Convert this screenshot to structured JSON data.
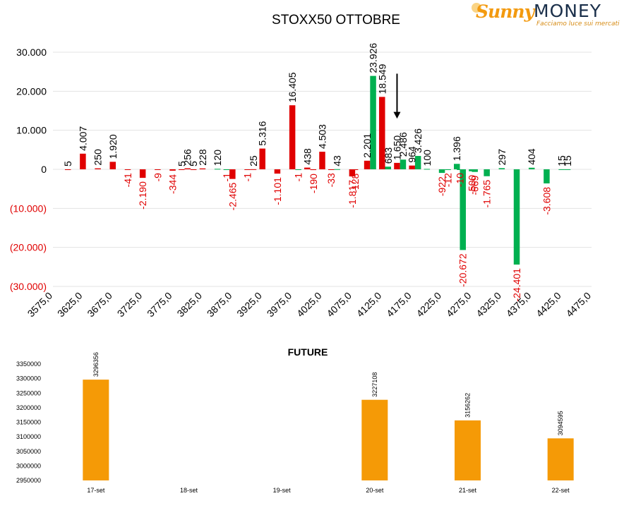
{
  "logo": {
    "brand_part1": "Sunny",
    "brand_part2": "MONEY",
    "tagline": "Facciamo luce sui mercati"
  },
  "colors": {
    "positive": "#00b050",
    "negative": "#e00000",
    "future_bar": "#f59a06",
    "arrow": "#000000"
  },
  "chart_data": [
    {
      "type": "bar",
      "title": "STOXX50 OTTOBRE",
      "xlabel": "",
      "ylabel": "",
      "xlim": [
        3575,
        4475
      ],
      "ylim": [
        -30000,
        30000
      ],
      "x_ticks": [
        "3575,0",
        "3625,0",
        "3675,0",
        "3725,0",
        "3775,0",
        "3825,0",
        "3875,0",
        "3925,0",
        "3975,0",
        "4025,0",
        "4075,0",
        "4125,0",
        "4175,0",
        "4225,0",
        "4275,0",
        "4325,0",
        "4375,0",
        "4425,0",
        "4475,0"
      ],
      "y_ticks": [
        "30.000",
        "20.000",
        "10.000",
        "0",
        "(10.000)",
        "(20.000)",
        "(30.000)"
      ],
      "grid": true,
      "arrow_at_strike": 4150,
      "series": [
        {
          "color_key": "negative",
          "points": [
            {
              "x": 3600,
              "y": 5,
              "label": "5"
            },
            {
              "x": 3625,
              "y": 4007,
              "label": "4.007"
            },
            {
              "x": 3650,
              "y": 250,
              "label": "250"
            },
            {
              "x": 3675,
              "y": 1920,
              "label": "1.920"
            },
            {
              "x": 3700,
              "y": -41,
              "label": "-41"
            },
            {
              "x": 3725,
              "y": -2190,
              "label": "-2.190"
            },
            {
              "x": 3750,
              "y": -9,
              "label": "-9"
            },
            {
              "x": 3775,
              "y": -344,
              "label": "-344"
            },
            {
              "x": 3790,
              "y": 5,
              "label": "5"
            },
            {
              "x": 3800,
              "y": 256,
              "label": "256"
            },
            {
              "x": 3810,
              "y": 5,
              "label": "5"
            },
            {
              "x": 3825,
              "y": 228,
              "label": "228"
            },
            {
              "x": 3875,
              "y": -2465,
              "label": "-2.465"
            },
            {
              "x": 3900,
              "y": -1,
              "label": "-1"
            },
            {
              "x": 3910,
              "y": 25,
              "label": "25"
            },
            {
              "x": 3925,
              "y": 5316,
              "label": "5.316"
            },
            {
              "x": 3950,
              "y": -1101,
              "label": "-1.101"
            },
            {
              "x": 3975,
              "y": 16405,
              "label": "16.405"
            },
            {
              "x": 4000,
              "y": 438,
              "label": "438"
            },
            {
              "x": 4010,
              "y": -190,
              "label": "-190"
            },
            {
              "x": 4025,
              "y": 4503,
              "label": "4.503"
            },
            {
              "x": 4040,
              "y": -33,
              "label": "-33"
            },
            {
              "x": 4075,
              "y": -1817,
              "label": "-1.817"
            },
            {
              "x": 4080,
              "y": -128,
              "label": "-128"
            },
            {
              "x": 4100,
              "y": 2201,
              "label": "2.201"
            },
            {
              "x": 4125,
              "y": 18549,
              "label": "18.549"
            },
            {
              "x": 4150,
              "y": 1650,
              "label": "1.650"
            },
            {
              "x": 4175,
              "y": 964,
              "label": "964"
            }
          ]
        },
        {
          "color_key": "positive",
          "points": [
            {
              "x": 3850,
              "y": 120,
              "label": "120"
            },
            {
              "x": 3865,
              "y": -1,
              "label": "-1"
            },
            {
              "x": 3985,
              "y": -1,
              "label": "-1"
            },
            {
              "x": 4050,
              "y": 43,
              "label": "43"
            },
            {
              "x": 4110,
              "y": 23926,
              "label": "23.926"
            },
            {
              "x": 4135,
              "y": 683,
              "label": "683"
            },
            {
              "x": 4160,
              "y": 2486,
              "label": "2.486"
            },
            {
              "x": 4185,
              "y": 3426,
              "label": "3.426"
            },
            {
              "x": 4200,
              "y": 100,
              "label": "100"
            },
            {
              "x": 4225,
              "y": -922,
              "label": "-922"
            },
            {
              "x": 4235,
              "y": -12,
              "label": "-12"
            },
            {
              "x": 4250,
              "y": 1396,
              "label": "1.396"
            },
            {
              "x": 4255,
              "y": -10,
              "label": "-10"
            },
            {
              "x": 4260,
              "y": -20672,
              "label": "-20.672"
            },
            {
              "x": 4275,
              "y": -500,
              "label": "-500"
            },
            {
              "x": 4280,
              "y": -669,
              "label": "-669"
            },
            {
              "x": 4300,
              "y": -1765,
              "label": "-1.765"
            },
            {
              "x": 4325,
              "y": 297,
              "label": "297"
            },
            {
              "x": 4350,
              "y": -24401,
              "label": "-24.401"
            },
            {
              "x": 4375,
              "y": 404,
              "label": "404"
            },
            {
              "x": 4400,
              "y": -3608,
              "label": "-3.608"
            },
            {
              "x": 4425,
              "y": 15,
              "label": "15"
            },
            {
              "x": 4435,
              "y": 15,
              "label": "15"
            }
          ]
        }
      ]
    },
    {
      "type": "bar",
      "title": "FUTURE",
      "xlabel": "",
      "ylabel": "",
      "categories": [
        "17-set",
        "18-set",
        "19-set",
        "20-set",
        "21-set",
        "22-set"
      ],
      "values": [
        3296356,
        null,
        null,
        3227108,
        3156262,
        3094595
      ],
      "value_labels": [
        "3296356",
        "",
        "",
        "3227108",
        "3156262",
        "3094595"
      ],
      "ylim": [
        2950000,
        3350000
      ],
      "y_ticks": [
        "3350000",
        "3300000",
        "3250000",
        "3200000",
        "3150000",
        "3100000",
        "3050000",
        "3000000",
        "2950000"
      ],
      "grid": false
    }
  ]
}
